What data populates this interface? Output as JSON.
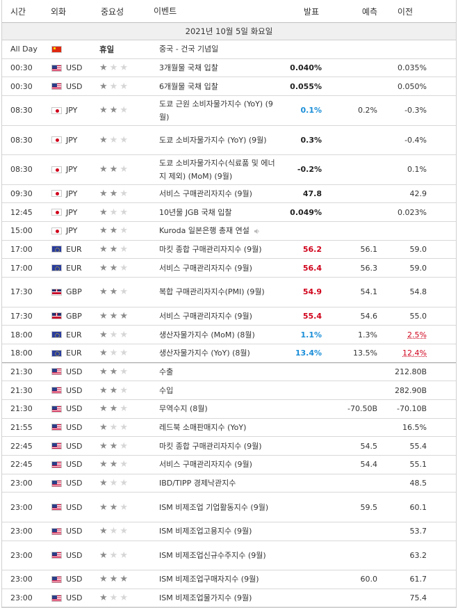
{
  "header": {
    "time": "시간",
    "currency": "외화",
    "importance": "중요성",
    "event": "이벤트",
    "actual": "발표",
    "forecast": "예측",
    "previous": "이전"
  },
  "date_label": "2021년 10월 5일 화요일",
  "holiday": {
    "time": "All Day",
    "flag": "flag-cn",
    "label": "휴일",
    "event": "중국 - 건국 기념일"
  },
  "colors": {
    "actual_red": "#d0021b",
    "actual_blue": "#1a8ed8",
    "star_on": "#8c8c8c",
    "star_off": "#d6d6d6",
    "date_bg": "#f0f0f0"
  },
  "rows": [
    {
      "time": "00:30",
      "flag": "flag-us",
      "cur": "USD",
      "stars": 1,
      "event": "3개월물 국채 입찰",
      "actual": "0.040%",
      "actual_color": "black",
      "forecast": "",
      "previous": "0.035%",
      "tall": false
    },
    {
      "time": "00:30",
      "flag": "flag-us",
      "cur": "USD",
      "stars": 1,
      "event": "6개월물 국채 입찰",
      "actual": "0.055%",
      "actual_color": "black",
      "forecast": "",
      "previous": "0.050%",
      "tall": false
    },
    {
      "time": "08:30",
      "flag": "flag-jp",
      "cur": "JPY",
      "stars": 2,
      "event": "도쿄 근원 소비자물가지수 (YoY) (9월)",
      "actual": "0.1%",
      "actual_color": "blue",
      "forecast": "0.2%",
      "previous": "-0.3%",
      "tall": true
    },
    {
      "time": "08:30",
      "flag": "flag-jp",
      "cur": "JPY",
      "stars": 1,
      "event": "도쿄 소비자물가지수 (YoY) (9월)",
      "actual": "0.3%",
      "actual_color": "black",
      "forecast": "",
      "previous": "-0.4%",
      "tall": true
    },
    {
      "time": "08:30",
      "flag": "flag-jp",
      "cur": "JPY",
      "stars": 2,
      "event": "도쿄 소비자물가지수(식료품 및 에너지 제외) (MoM) (9월)",
      "actual": "-0.2%",
      "actual_color": "black",
      "forecast": "",
      "previous": "0.1%",
      "tall": true
    },
    {
      "time": "09:30",
      "flag": "flag-jp",
      "cur": "JPY",
      "stars": 2,
      "event": "서비스 구매관리자지수 (9월)",
      "actual": "47.8",
      "actual_color": "black",
      "forecast": "",
      "previous": "42.9",
      "tall": false
    },
    {
      "time": "12:45",
      "flag": "flag-jp",
      "cur": "JPY",
      "stars": 1,
      "event": "10년물 JGB 국채 입찰",
      "actual": "0.049%",
      "actual_color": "black",
      "forecast": "",
      "previous": "0.023%",
      "tall": false
    },
    {
      "time": "15:00",
      "flag": "flag-jp",
      "cur": "JPY",
      "stars": 2,
      "event": "Kuroda 일본은행 총재 연설",
      "actual": "",
      "actual_color": "black",
      "forecast": "",
      "previous": "",
      "tall": false,
      "speaker": true
    },
    {
      "time": "17:00",
      "flag": "flag-eu",
      "cur": "EUR",
      "stars": 2,
      "event": "마킷 종합 구매관리자지수 (9월)",
      "actual": "56.2",
      "actual_color": "red",
      "forecast": "56.1",
      "previous": "59.0",
      "tall": false
    },
    {
      "time": "17:00",
      "flag": "flag-eu",
      "cur": "EUR",
      "stars": 2,
      "event": "서비스 구매관리자지수 (9월)",
      "actual": "56.4",
      "actual_color": "red",
      "forecast": "56.3",
      "previous": "59.0",
      "tall": false
    },
    {
      "time": "17:30",
      "flag": "flag-gb",
      "cur": "GBP",
      "stars": 2,
      "event": "복합 구매관리자지수(PMI) (9월)",
      "actual": "54.9",
      "actual_color": "red",
      "forecast": "54.1",
      "previous": "54.8",
      "tall": true
    },
    {
      "time": "17:30",
      "flag": "flag-gb",
      "cur": "GBP",
      "stars": 3,
      "event": "서비스 구매관리자지수 (9월)",
      "actual": "55.4",
      "actual_color": "red",
      "forecast": "54.6",
      "previous": "55.0",
      "tall": false
    },
    {
      "time": "18:00",
      "flag": "flag-eu",
      "cur": "EUR",
      "stars": 1,
      "event": "생산자물가지수 (MoM) (8월)",
      "actual": "1.1%",
      "actual_color": "blue",
      "forecast": "1.3%",
      "previous": "2.5%",
      "previous_red": true,
      "tall": false
    },
    {
      "time": "18:00",
      "flag": "flag-eu",
      "cur": "EUR",
      "stars": 1,
      "event": "생산자물가지수 (YoY) (8월)",
      "actual": "13.4%",
      "actual_color": "blue",
      "forecast": "13.5%",
      "previous": "12.4%",
      "previous_red": true,
      "tall": false,
      "sep": true
    },
    {
      "time": "21:30",
      "flag": "flag-us",
      "cur": "USD",
      "stars": 2,
      "event": "수출",
      "actual": "",
      "actual_color": "black",
      "forecast": "",
      "previous": "212.80B",
      "tall": false
    },
    {
      "time": "21:30",
      "flag": "flag-us",
      "cur": "USD",
      "stars": 2,
      "event": "수입",
      "actual": "",
      "actual_color": "black",
      "forecast": "",
      "previous": "282.90B",
      "tall": false
    },
    {
      "time": "21:30",
      "flag": "flag-us",
      "cur": "USD",
      "stars": 2,
      "event": "무역수지 (8월)",
      "actual": "",
      "actual_color": "black",
      "forecast": "-70.50B",
      "previous": "-70.10B",
      "tall": false
    },
    {
      "time": "21:55",
      "flag": "flag-us",
      "cur": "USD",
      "stars": 1,
      "event": "레드북 소매판매지수 (YoY)",
      "actual": "",
      "actual_color": "black",
      "forecast": "",
      "previous": "16.5%",
      "tall": false
    },
    {
      "time": "22:45",
      "flag": "flag-us",
      "cur": "USD",
      "stars": 2,
      "event": "마킷 종합 구매관리자지수 (9월)",
      "actual": "",
      "actual_color": "black",
      "forecast": "54.5",
      "previous": "55.4",
      "tall": false
    },
    {
      "time": "22:45",
      "flag": "flag-us",
      "cur": "USD",
      "stars": 2,
      "event": "서비스 구매관리자지수 (9월)",
      "actual": "",
      "actual_color": "black",
      "forecast": "54.4",
      "previous": "55.1",
      "tall": false
    },
    {
      "time": "23:00",
      "flag": "flag-us",
      "cur": "USD",
      "stars": 1,
      "event": "IBD/TIPP 경제낙관지수",
      "actual": "",
      "actual_color": "black",
      "forecast": "",
      "previous": "48.5",
      "tall": false
    },
    {
      "time": "23:00",
      "flag": "flag-us",
      "cur": "USD",
      "stars": 2,
      "event": "ISM 비제조업 기업활동지수 (9월)",
      "actual": "",
      "actual_color": "black",
      "forecast": "59.5",
      "previous": "60.1",
      "tall": true
    },
    {
      "time": "23:00",
      "flag": "flag-us",
      "cur": "USD",
      "stars": 1,
      "event": "ISM 비제조업고용지수 (9월)",
      "actual": "",
      "actual_color": "black",
      "forecast": "",
      "previous": "53.7",
      "tall": false
    },
    {
      "time": "23:00",
      "flag": "flag-us",
      "cur": "USD",
      "stars": 1,
      "event": "ISM 비제조업신규수주지수 (9월)",
      "actual": "",
      "actual_color": "black",
      "forecast": "",
      "previous": "63.2",
      "tall": true
    },
    {
      "time": "23:00",
      "flag": "flag-us",
      "cur": "USD",
      "stars": 3,
      "event": "ISM 비제조업구매자지수 (9월)",
      "actual": "",
      "actual_color": "black",
      "forecast": "60.0",
      "previous": "61.7",
      "tall": false
    },
    {
      "time": "23:00",
      "flag": "flag-us",
      "cur": "USD",
      "stars": 1,
      "event": "ISM 비제조업물가지수 (9월)",
      "actual": "",
      "actual_color": "black",
      "forecast": "",
      "previous": "75.4",
      "tall": false
    }
  ]
}
